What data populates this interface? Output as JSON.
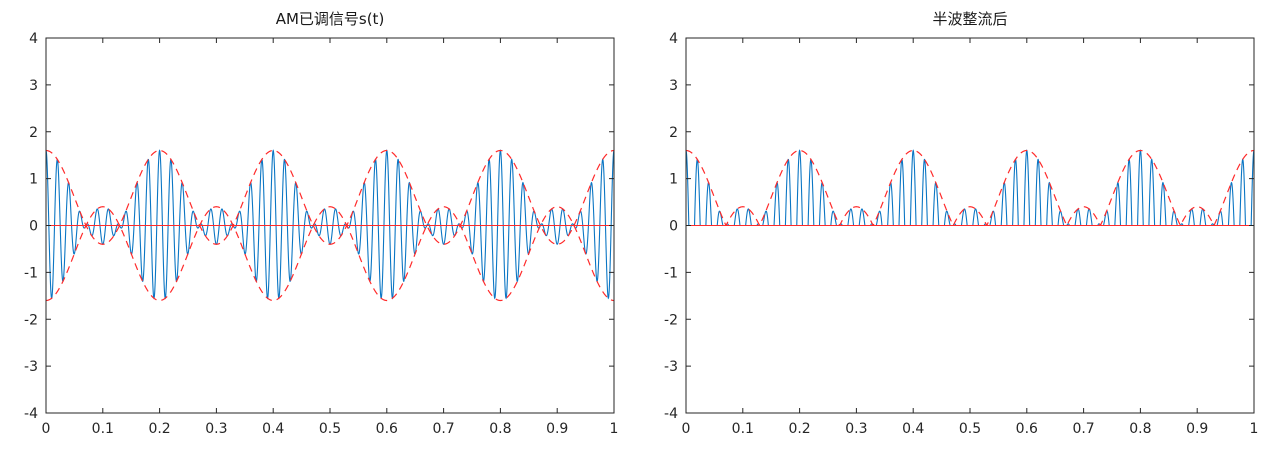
{
  "figure": {
    "background": "#ffffff",
    "axis_color": "#262626",
    "tick_label_color": "#262626"
  },
  "chart_data": [
    {
      "type": "line",
      "title": "AM已调信号s(t)",
      "xlim": [
        0,
        1
      ],
      "ylim": [
        -4,
        4
      ],
      "xticks": [
        0,
        0.1,
        0.2,
        0.3,
        0.4,
        0.5,
        0.6,
        0.7,
        0.8,
        0.9,
        1
      ],
      "xtick_labels": [
        "0",
        "0.1",
        "0.2",
        "0.3",
        "0.4",
        "0.5",
        "0.6",
        "0.7",
        "0.8",
        "0.9",
        "1"
      ],
      "yticks": [
        -4,
        -3,
        -2,
        -1,
        0,
        1,
        2,
        3,
        4
      ],
      "ytick_labels": [
        "-4",
        "-3",
        "-2",
        "-1",
        "0",
        "1",
        "2",
        "3",
        "4"
      ],
      "grid": false,
      "legend": "none",
      "signal": {
        "description": "AM signal s(t) = (0.6 + cos(2*pi*5*t)) * cos(2*pi*50*t); over-modulated, envelope |0.6 + cos(2*pi*5*t)| peaks at 1.6 at t = 0, 0.2, 0.4, 0.6, 0.8, 1 with secondary bumps of 0.4 at t = 0.1, 0.3, 0.5, 0.7, 0.9",
        "dc": 0.6,
        "mod_amplitude": 1,
        "mod_freq_hz": 5,
        "carrier_freq_hz": 50,
        "envelope_peak": 1.6,
        "envelope_minor_bump": 0.4,
        "samples": 3000
      },
      "series": [
        {
          "name": "am-signal",
          "color": "#0b76c4",
          "style": "solid",
          "width": 1.1,
          "expr": "am"
        },
        {
          "name": "envelope-upper",
          "color": "#ff2a2a",
          "style": "dashed",
          "width": 1.2,
          "expr": "env_pos"
        },
        {
          "name": "envelope-lower",
          "color": "#ff2a2a",
          "style": "dashed",
          "width": 1.2,
          "expr": "env_neg"
        },
        {
          "name": "zero-line",
          "color": "#ff2a2a",
          "style": "solid",
          "width": 1.1,
          "expr": "zero"
        }
      ]
    },
    {
      "type": "line",
      "title": "半波整流后",
      "xlim": [
        0,
        1
      ],
      "ylim": [
        -4,
        4
      ],
      "xticks": [
        0,
        0.1,
        0.2,
        0.3,
        0.4,
        0.5,
        0.6,
        0.7,
        0.8,
        0.9,
        1
      ],
      "xtick_labels": [
        "0",
        "0.1",
        "0.2",
        "0.3",
        "0.4",
        "0.5",
        "0.6",
        "0.7",
        "0.8",
        "0.9",
        "1"
      ],
      "yticks": [
        -4,
        -3,
        -2,
        -1,
        0,
        1,
        2,
        3,
        4
      ],
      "ytick_labels": [
        "-4",
        "-3",
        "-2",
        "-1",
        "0",
        "1",
        "2",
        "3",
        "4"
      ],
      "grid": false,
      "legend": "none",
      "signal": {
        "description": "Half-wave rectified AM signal max(s(t),0) with s(t) = (0.6 + cos(2*pi*5*t)) * cos(2*pi*50*t); dashed envelope |0.6 + cos(2*pi*5*t)| on top, solid red baseline at 0",
        "dc": 0.6,
        "mod_amplitude": 1,
        "mod_freq_hz": 5,
        "carrier_freq_hz": 50,
        "envelope_peak": 1.6,
        "envelope_minor_bump": 0.4,
        "samples": 3000
      },
      "series": [
        {
          "name": "rectified-signal",
          "color": "#0b76c4",
          "style": "solid",
          "width": 1.1,
          "expr": "am_rect"
        },
        {
          "name": "envelope-upper",
          "color": "#ff2a2a",
          "style": "dashed",
          "width": 1.2,
          "expr": "env_pos"
        },
        {
          "name": "zero-line",
          "color": "#ff2a2a",
          "style": "solid",
          "width": 1.1,
          "expr": "zero"
        }
      ]
    }
  ]
}
